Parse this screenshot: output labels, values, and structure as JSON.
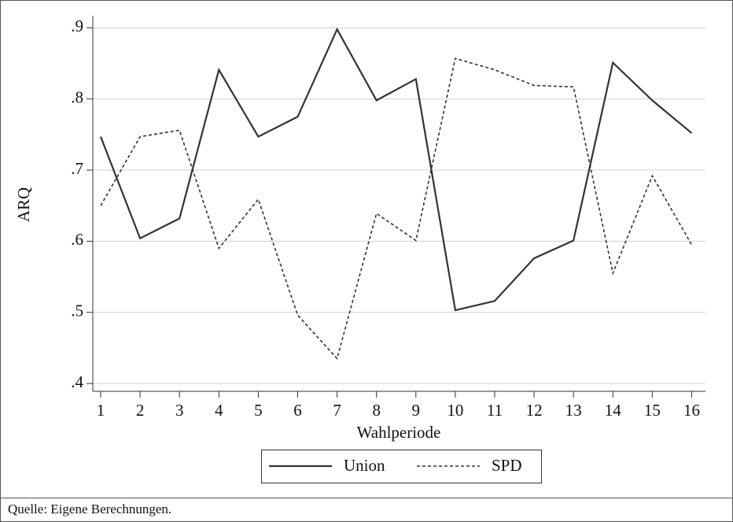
{
  "chart_data": {
    "type": "line",
    "xlabel": "Wahlperiode",
    "ylabel": "ARQ",
    "x": [
      1,
      2,
      3,
      4,
      5,
      6,
      7,
      8,
      9,
      10,
      11,
      12,
      13,
      14,
      15,
      16
    ],
    "series": [
      {
        "name": "Union",
        "color": "#333333",
        "dash": "solid",
        "values": [
          0.747,
          0.604,
          0.632,
          0.841,
          0.747,
          0.775,
          0.898,
          0.798,
          0.828,
          0.503,
          0.516,
          0.576,
          0.601,
          0.851,
          0.798,
          0.752
        ]
      },
      {
        "name": "SPD",
        "color": "#333333",
        "dash": "dashed",
        "values": [
          0.65,
          0.747,
          0.756,
          0.59,
          0.659,
          0.496,
          0.435,
          0.639,
          0.601,
          0.857,
          0.841,
          0.819,
          0.817,
          0.555,
          0.692,
          0.595
        ]
      }
    ],
    "xlim": [
      0.8,
      16.35
    ],
    "ylim": [
      0.389,
      0.917
    ],
    "xticks": [
      1,
      2,
      3,
      4,
      5,
      6,
      7,
      8,
      9,
      10,
      11,
      12,
      13,
      14,
      15,
      16
    ],
    "yticks": [
      {
        "value": 0.4,
        "label": ".4"
      },
      {
        "value": 0.5,
        "label": ".5"
      },
      {
        "value": 0.6,
        "label": ".6"
      },
      {
        "value": 0.7,
        "label": ".7"
      },
      {
        "value": 0.8,
        "label": ".8"
      },
      {
        "value": 0.9,
        "label": ".9"
      }
    ],
    "grid": true,
    "legend": "bottom",
    "source": "Quelle: Eigene Berechnungen."
  }
}
